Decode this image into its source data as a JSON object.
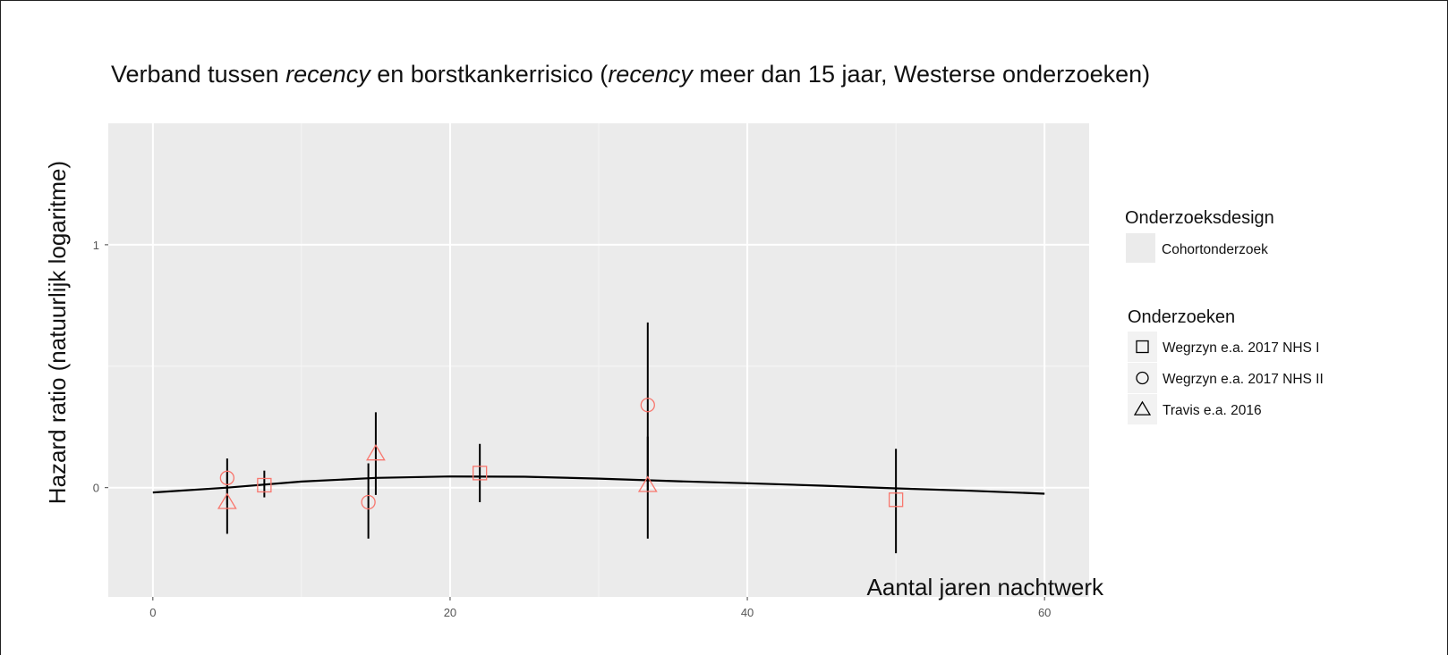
{
  "chart_data": {
    "type": "scatter",
    "title_parts": [
      {
        "text": "Verband tussen ",
        "italic": false
      },
      {
        "text": "recency",
        "italic": true
      },
      {
        "text": " en borstkankerrisico (",
        "italic": false
      },
      {
        "text": "recency",
        "italic": true
      },
      {
        "text": " meer dan 15 jaar, Westerse onderzoeken)",
        "italic": false
      }
    ],
    "xlabel": "Aantal jaren nachtwerk",
    "ylabel": "Hazard ratio (natuurlijk logaritme)",
    "xlim": [
      -3,
      63
    ],
    "ylim": [
      -0.45,
      1.5
    ],
    "x_ticks": [
      0,
      20,
      40,
      60
    ],
    "y_ticks": [
      0,
      1
    ],
    "grid": true,
    "background": "#ebebeb",
    "point_color": "#f8766d",
    "line_color": "#000000",
    "legend_position": "right",
    "legend": {
      "design_title": "Onderzoeksdesign",
      "design_items": [
        {
          "label": "Cohortonderzoek"
        }
      ],
      "studies_title": "Onderzoeken",
      "studies_items": [
        {
          "label": "Wegrzyn e.a. 2017 NHS I",
          "shape": "square"
        },
        {
          "label": "Wegrzyn e.a. 2017 NHS II",
          "shape": "circle"
        },
        {
          "label": "Travis e.a. 2016",
          "shape": "triangle"
        }
      ]
    },
    "series": [
      {
        "name": "Wegrzyn e.a. 2017 NHS I",
        "shape": "square",
        "points": [
          {
            "x": 7.5,
            "y": 0.01,
            "lo": -0.04,
            "hi": 0.07
          },
          {
            "x": 22,
            "y": 0.06,
            "lo": -0.06,
            "hi": 0.18
          },
          {
            "x": 50,
            "y": -0.05,
            "lo": -0.27,
            "hi": 0.16
          }
        ]
      },
      {
        "name": "Wegrzyn e.a. 2017 NHS II",
        "shape": "circle",
        "points": [
          {
            "x": 5,
            "y": 0.04,
            "lo": -0.07,
            "hi": 0.12
          },
          {
            "x": 14.5,
            "y": -0.06,
            "lo": -0.21,
            "hi": 0.1
          },
          {
            "x": 33.3,
            "y": 0.34,
            "lo": -0.01,
            "hi": 0.68
          }
        ]
      },
      {
        "name": "Travis e.a. 2016",
        "shape": "triangle",
        "points": [
          {
            "x": 5,
            "y": -0.06,
            "lo": -0.19,
            "hi": 0.06
          },
          {
            "x": 15,
            "y": 0.14,
            "lo": -0.03,
            "hi": 0.31
          },
          {
            "x": 33.3,
            "y": 0.01,
            "lo": -0.21,
            "hi": 0.21
          }
        ]
      }
    ],
    "fit_curve": {
      "x": [
        0,
        5,
        10,
        15,
        20,
        25,
        30,
        35,
        40,
        45,
        50,
        55,
        60
      ],
      "y": [
        -0.02,
        0.0,
        0.025,
        0.04,
        0.046,
        0.045,
        0.037,
        0.027,
        0.018,
        0.008,
        -0.003,
        -0.013,
        -0.025
      ]
    }
  }
}
